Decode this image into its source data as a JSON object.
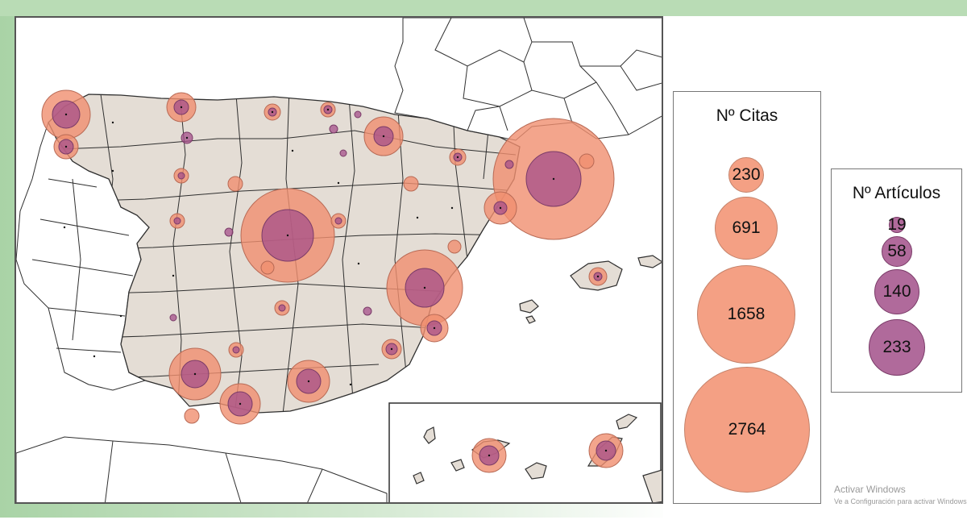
{
  "colors": {
    "citas_fill": "#f08f6f",
    "citas_stroke": "#b86a55",
    "articulos_fill": "#a64f8a",
    "articulos_stroke": "#7a3b68",
    "land_spain": "#e4ddd5",
    "land_other": "#ffffff",
    "border": "#2f2f2f",
    "sea": "#ffffff"
  },
  "legend_citas": {
    "title": "Nº Citas",
    "values": [
      "230",
      "691",
      "1658",
      "2764"
    ]
  },
  "legend_articulos": {
    "title": "Nº Artículos",
    "values": [
      "19",
      "58",
      "140",
      "233"
    ]
  },
  "watermark": {
    "line1": "Activar Windows",
    "line2": "Ve a Configuración para activar Windows"
  }
}
